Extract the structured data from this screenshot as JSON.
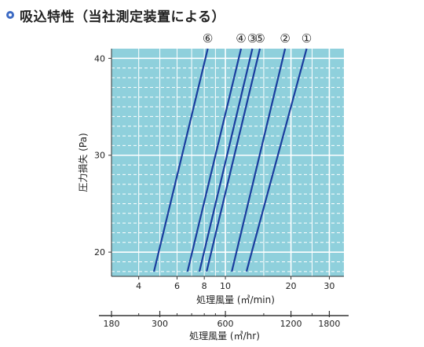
{
  "header": {
    "title": "吸込特性（当社測定装置による）",
    "bullet_color": "#3d6bc4"
  },
  "chart_data": {
    "type": "line",
    "title": "吸込特性（当社測定装置による）",
    "xlabel": "処理風量 (㎥/min)",
    "x2label": "処理風量 (㎥/hr)",
    "ylabel": "圧力損失 (Pa)",
    "xscale": "log",
    "xlim": [
      3,
      35
    ],
    "ylim": [
      17.5,
      41
    ],
    "xticks": [
      4,
      6,
      8,
      10,
      20,
      30
    ],
    "yticks": [
      20,
      30,
      40
    ],
    "x2ticks": [
      180,
      300,
      600,
      1200,
      1800
    ],
    "grid": true,
    "plot_bg": "#8fd0dc",
    "line_color": "#1a3d9e",
    "series": [
      {
        "name": "⑥",
        "x": [
          4.7,
          8.3
        ],
        "y": [
          18,
          41
        ]
      },
      {
        "name": "④",
        "x": [
          6.7,
          11.8
        ],
        "y": [
          18,
          41
        ]
      },
      {
        "name": "③",
        "x": [
          7.6,
          13.3
        ],
        "y": [
          18,
          41
        ]
      },
      {
        "name": "⑤",
        "x": [
          8.2,
          14.4
        ],
        "y": [
          18,
          41
        ]
      },
      {
        "name": "②",
        "x": [
          10.7,
          18.8
        ],
        "y": [
          18,
          41
        ]
      },
      {
        "name": "①",
        "x": [
          12.5,
          23.6
        ],
        "y": [
          18,
          41
        ]
      }
    ]
  }
}
